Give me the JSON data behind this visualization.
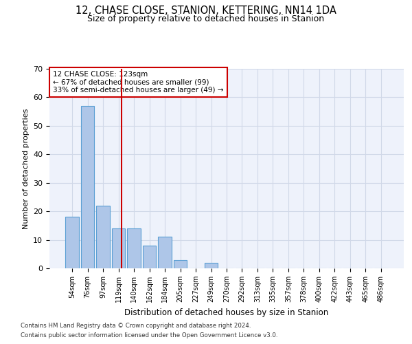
{
  "title1": "12, CHASE CLOSE, STANION, KETTERING, NN14 1DA",
  "title2": "Size of property relative to detached houses in Stanion",
  "xlabel": "Distribution of detached houses by size in Stanion",
  "ylabel": "Number of detached properties",
  "categories": [
    "54sqm",
    "76sqm",
    "97sqm",
    "119sqm",
    "140sqm",
    "162sqm",
    "184sqm",
    "205sqm",
    "227sqm",
    "249sqm",
    "270sqm",
    "292sqm",
    "313sqm",
    "335sqm",
    "357sqm",
    "378sqm",
    "400sqm",
    "422sqm",
    "443sqm",
    "465sqm",
    "486sqm"
  ],
  "values": [
    18,
    57,
    22,
    14,
    14,
    8,
    11,
    3,
    0,
    2,
    0,
    0,
    0,
    0,
    0,
    0,
    0,
    0,
    0,
    0,
    0
  ],
  "bar_color": "#aec6e8",
  "bar_edge_color": "#5a9fd4",
  "grid_color": "#d0d8e8",
  "bg_color": "#eef2fb",
  "annotation_text": "12 CHASE CLOSE: 123sqm\n← 67% of detached houses are smaller (99)\n33% of semi-detached houses are larger (49) →",
  "annotation_box_color": "#ffffff",
  "annotation_box_edge": "#cc0000",
  "ylim": [
    0,
    70
  ],
  "yticks": [
    0,
    10,
    20,
    30,
    40,
    50,
    60,
    70
  ],
  "footnote1": "Contains HM Land Registry data © Crown copyright and database right 2024.",
  "footnote2": "Contains public sector information licensed under the Open Government Licence v3.0."
}
